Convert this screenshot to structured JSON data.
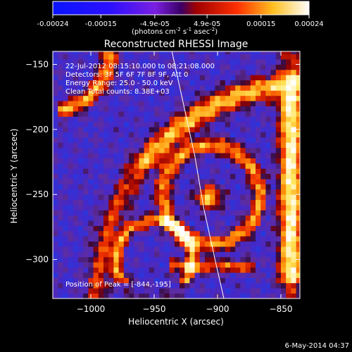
{
  "colorbar": {
    "ticks": [
      "-0.00024",
      "-0.00015",
      "-4.9e-05",
      "4.9e-05",
      "0.00015",
      "0.00024"
    ],
    "units": "(photons cm",
    "units_exp1": "-2",
    "units_mid": " s",
    "units_exp2": "-1",
    "units_end": " asec",
    "units_exp3": "-2",
    "units_close": ")"
  },
  "chart_data": {
    "type": "heatmap",
    "title": "Reconstructed RHESSI Image",
    "xlabel": "Heliocentric X (arcsec)",
    "ylabel": "Heliocentric Y (arcsec)",
    "xlim": [
      -1030,
      -835
    ],
    "ylim": [
      -330,
      -140
    ],
    "x_ticks": [
      "−1000",
      "−950",
      "−900",
      "−850"
    ],
    "x_tick_values": [
      -1000,
      -950,
      -900,
      -850
    ],
    "y_ticks": [
      "−150",
      "−200",
      "−250",
      "−300"
    ],
    "y_tick_values": [
      -150,
      -200,
      -250,
      -300
    ],
    "colorscale_range": [
      -0.00024,
      0.00024
    ],
    "limb_line": [
      [
        -936,
        -140
      ],
      [
        -927,
        -180
      ],
      [
        -918,
        -220
      ],
      [
        -911,
        -260
      ],
      [
        -902,
        -300
      ],
      [
        -895,
        -330
      ]
    ],
    "annotations": {
      "time": "22-Jul-2012 08:15:10.000 to 08:21:08.000",
      "detectors": "Detectors: 3F 5F 6F 7F 8F 9F, Att 0",
      "energy": "Energy Range: 25.0 - 50.0 keV",
      "clean": "Clean     Total counts: 8.38E+03",
      "peak": "Position of Peak = [-844,-195]"
    }
  },
  "footer": {
    "date": "6-May-2014 04:37"
  }
}
